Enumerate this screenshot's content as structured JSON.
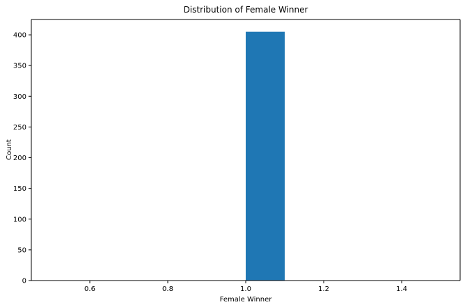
{
  "chart_data": {
    "type": "bar",
    "title": "Distribution of Female Winner",
    "xlabel": "Female Winner",
    "ylabel": "Count",
    "xlim": [
      0.45,
      1.55
    ],
    "ylim": [
      0,
      425
    ],
    "xticks": [
      0.6,
      0.8,
      1.0,
      1.2,
      1.4
    ],
    "xtick_labels": [
      "0.6",
      "0.8",
      "1.0",
      "1.2",
      "1.4"
    ],
    "yticks": [
      0,
      50,
      100,
      150,
      200,
      250,
      300,
      350,
      400
    ],
    "ytick_labels": [
      "0",
      "50",
      "100",
      "150",
      "200",
      "250",
      "300",
      "350",
      "400"
    ],
    "bins": [
      {
        "x0": 1.0,
        "x1": 1.1,
        "value": 405
      }
    ],
    "color": "#1f77b4",
    "grid": false
  }
}
